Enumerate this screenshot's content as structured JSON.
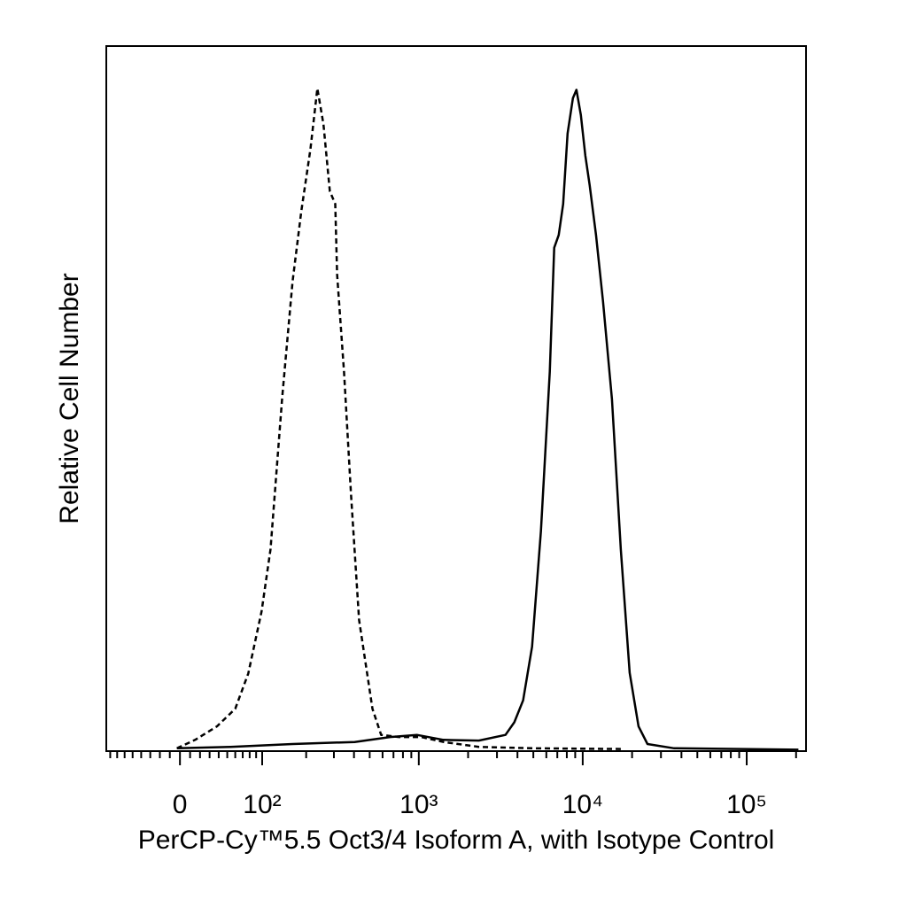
{
  "chart_data": {
    "type": "line",
    "xlabel": "PerCP-Cy™5.5 Oct3/4 Isoform A, with Isotype Control",
    "ylabel": "Relative Cell Number",
    "xscale": "biexponential",
    "xlim": [
      -86,
      230000
    ],
    "ylim": [
      0,
      100
    ],
    "xticks": [
      {
        "value": 0,
        "label": "0"
      },
      {
        "value": 100,
        "label": "10²"
      },
      {
        "value": 1000,
        "label": "10³"
      },
      {
        "value": 10000,
        "label": "10⁴"
      },
      {
        "value": 100000,
        "label": "10⁵"
      }
    ],
    "xminorticks": [
      -80,
      -70,
      -60,
      -50,
      -40,
      -30,
      -20,
      -10,
      10,
      20,
      30,
      40,
      50,
      60,
      70,
      80,
      90,
      200,
      300,
      400,
      500,
      600,
      700,
      800,
      900,
      2000,
      3000,
      4000,
      5000,
      6000,
      7000,
      8000,
      9000,
      20000,
      30000,
      40000,
      50000,
      60000,
      70000,
      80000,
      90000,
      200000
    ],
    "series": [
      {
        "color": "#000000",
        "dashed": true,
        "x": [
          -3,
          15,
          38,
          60,
          78,
          99,
          115,
          139,
          163,
          186,
          213,
          236,
          258,
          283,
          306,
          314,
          347,
          384,
          430,
          520,
          588,
          756,
          1036,
          1414,
          2324,
          4914,
          17080
        ],
        "values": [
          0.4,
          1.6,
          3.5,
          6.0,
          11.0,
          19.8,
          28.6,
          50.3,
          66.6,
          76.6,
          85.4,
          94.0,
          88.9,
          79.4,
          77.6,
          67.6,
          53.8,
          36.2,
          18.6,
          6.0,
          2.3,
          2.0,
          2.0,
          1.3,
          0.6,
          0.4,
          0.3
        ]
      },
      {
        "color": "#000000",
        "dashed": false,
        "x": [
          -3,
          54,
          163,
          404,
          668,
          973,
          1414,
          2324,
          3381,
          3829,
          4333,
          4914,
          5565,
          6300,
          6706,
          7140,
          7595,
          8085,
          8715,
          9163,
          9751,
          10374,
          11039,
          12054,
          13307,
          15078,
          17080,
          19348,
          21910,
          24829,
          36050,
          206570
        ],
        "values": [
          0.4,
          0.6,
          1.0,
          1.3,
          2.0,
          2.3,
          1.6,
          1.5,
          2.3,
          4.1,
          7.2,
          14.8,
          31.2,
          53.8,
          71.4,
          73.2,
          77.6,
          87.6,
          92.6,
          93.8,
          90.2,
          84.5,
          80.2,
          73.2,
          63.8,
          49.9,
          28.6,
          11.1,
          3.5,
          1.0,
          0.4,
          0.2
        ]
      }
    ]
  }
}
